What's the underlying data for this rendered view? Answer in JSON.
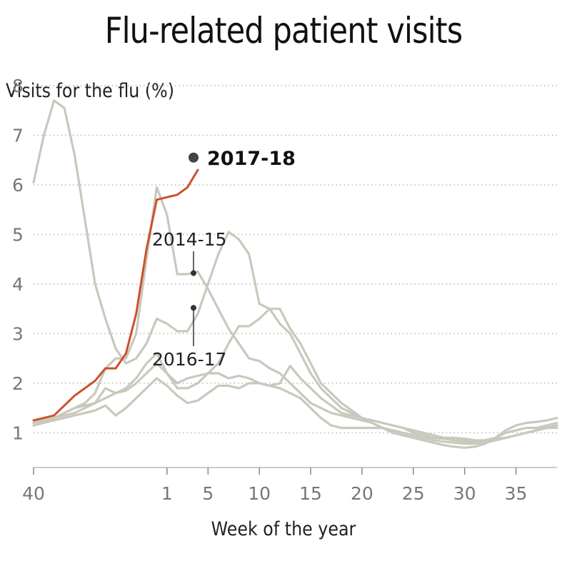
{
  "chart_data": {
    "type": "line",
    "title": "Flu-related patient visits",
    "ylabel": "Visits for the flu (%)",
    "xlabel": "Week of the year",
    "ylim": [
      0.2,
      8
    ],
    "yticks": [
      1,
      2,
      3,
      4,
      5,
      6,
      7,
      8
    ],
    "xticks": [
      "40",
      "1",
      "5",
      "10",
      "15",
      "20",
      "25",
      "30",
      "35"
    ],
    "grid": "horizontal dotted",
    "highlight_color": "#c9522a",
    "background_color": "#c9c8bd",
    "series": [
      {
        "name": "2017-18",
        "highlight": true,
        "values": [
          1.25,
          1.3,
          1.35,
          1.55,
          1.75,
          1.9,
          2.05,
          2.3,
          2.3,
          2.6,
          3.4,
          4.7,
          5.7,
          5.75,
          5.8,
          5.95,
          6.3
        ]
      },
      {
        "name": "2014-15",
        "values": [
          1.2,
          1.25,
          1.3,
          1.4,
          1.5,
          1.6,
          1.8,
          2.3,
          2.5,
          2.5,
          3.0,
          4.5,
          5.95,
          5.4,
          4.2,
          4.2,
          4.25,
          3.9,
          3.5,
          3.1,
          2.8,
          2.5,
          2.45,
          2.3,
          2.2,
          2.0,
          1.8,
          1.6,
          1.5,
          1.4,
          1.35,
          1.3,
          1.25,
          1.2,
          1.1,
          1.05,
          1.0,
          0.95,
          0.9,
          0.9,
          0.88,
          0.85,
          0.85,
          0.82,
          0.85,
          0.9,
          1.0,
          1.05,
          1.1,
          1.1,
          1.15,
          1.2
        ]
      },
      {
        "name": "2016-17",
        "values": [
          1.2,
          1.25,
          1.3,
          1.35,
          1.4,
          1.5,
          1.6,
          1.7,
          1.8,
          1.9,
          2.1,
          2.4,
          2.6,
          2.2,
          1.9,
          1.9,
          2.0,
          2.2,
          2.4,
          2.8,
          3.15,
          3.15,
          3.3,
          3.5,
          3.2,
          3.0,
          2.6,
          2.2,
          1.9,
          1.7,
          1.5,
          1.4,
          1.3,
          1.25,
          1.2,
          1.15,
          1.1,
          1.0,
          0.95,
          0.9,
          0.88,
          0.85,
          0.82,
          0.8,
          0.8,
          0.85,
          0.9,
          0.95,
          1.0,
          1.05,
          1.1,
          1.15
        ]
      },
      {
        "name": "",
        "values": [
          6.05,
          7.0,
          7.7,
          7.55,
          6.6,
          5.3,
          4.0,
          3.3,
          2.7,
          2.4,
          2.5,
          2.8,
          3.3,
          3.2,
          3.05,
          3.05,
          3.4,
          4.0,
          4.6,
          5.05,
          4.9,
          4.6,
          3.6,
          3.5,
          3.5,
          3.1,
          2.8,
          2.4,
          2.0,
          1.8,
          1.6,
          1.45,
          1.3,
          1.2,
          1.1,
          1.0,
          0.95,
          0.9,
          0.85,
          0.8,
          0.75,
          0.72,
          0.7,
          0.72,
          0.78,
          0.9,
          1.05,
          1.15,
          1.2,
          1.22,
          1.25,
          1.3
        ]
      },
      {
        "name": "",
        "values": [
          1.15,
          1.2,
          1.3,
          1.4,
          1.5,
          1.55,
          1.6,
          1.9,
          1.8,
          1.85,
          2.0,
          2.2,
          2.4,
          2.2,
          2.0,
          2.1,
          2.15,
          2.2,
          2.2,
          2.1,
          2.15,
          2.1,
          2.0,
          1.95,
          2.0,
          2.35,
          2.1,
          1.9,
          1.7,
          1.55,
          1.4,
          1.35,
          1.3,
          1.25,
          1.2,
          1.15,
          1.1,
          1.05,
          1.0,
          0.95,
          0.9,
          0.9,
          0.88,
          0.85,
          0.85,
          0.88,
          0.9,
          0.95,
          1.0,
          1.05,
          1.1,
          1.15
        ]
      },
      {
        "name": "",
        "values": [
          1.15,
          1.2,
          1.25,
          1.3,
          1.35,
          1.4,
          1.45,
          1.55,
          1.35,
          1.5,
          1.7,
          1.9,
          2.1,
          1.95,
          1.75,
          1.6,
          1.65,
          1.8,
          1.95,
          1.95,
          1.9,
          2.0,
          2.0,
          1.95,
          1.9,
          1.8,
          1.7,
          1.5,
          1.3,
          1.15,
          1.1,
          1.1,
          1.1,
          1.1,
          1.1,
          1.05,
          1.0,
          0.95,
          0.9,
          0.85,
          0.82,
          0.8,
          0.78,
          0.78,
          0.8,
          0.85,
          0.9,
          0.95,
          1.0,
          1.05,
          1.1,
          1.1
        ]
      }
    ],
    "annotations": [
      {
        "label": "2017-18",
        "series": "2017-18"
      },
      {
        "label": "2014-15",
        "series": "2014-15"
      },
      {
        "label": "2016-17",
        "series": "2016-17"
      }
    ]
  }
}
